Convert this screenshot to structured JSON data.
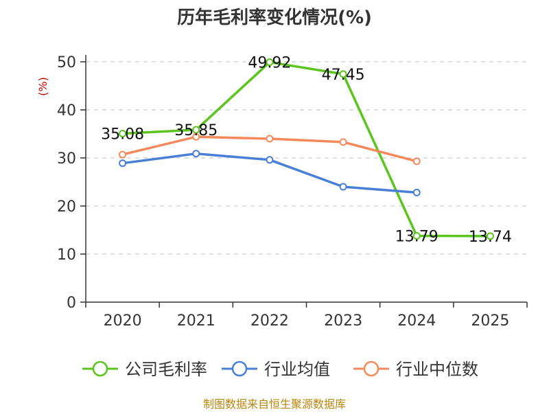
{
  "chart_data": {
    "type": "line",
    "title": "历年毛利率变化情况(%)",
    "ylabel": "(%)",
    "xlabel": "",
    "categories": [
      "2020",
      "2021",
      "2022",
      "2023",
      "2024",
      "2025"
    ],
    "ylim": [
      0,
      50
    ],
    "yticks": [
      0,
      10,
      20,
      30,
      40,
      50
    ],
    "ytick_labels": [
      "0",
      "10",
      "20",
      "30",
      "40",
      "50"
    ],
    "grid": true,
    "legend_position": "bottom",
    "series": [
      {
        "name": "公司毛利率",
        "color": "#5bc41d",
        "values": [
          35.08,
          35.85,
          49.92,
          47.45,
          13.79,
          13.74
        ],
        "data_labels": [
          "35.08",
          "35.85",
          "49.92",
          "47.45",
          "13.79",
          "13.74"
        ]
      },
      {
        "name": "行业均值",
        "color": "#4a7fd8",
        "values": [
          28.9,
          30.9,
          29.6,
          24.0,
          22.8,
          null
        ],
        "data_labels": []
      },
      {
        "name": "行业中位数",
        "color": "#f5895b",
        "values": [
          30.7,
          34.4,
          34.0,
          33.3,
          29.3,
          null
        ],
        "data_labels": []
      }
    ],
    "source": "制图数据来自恒生聚源数据库"
  }
}
